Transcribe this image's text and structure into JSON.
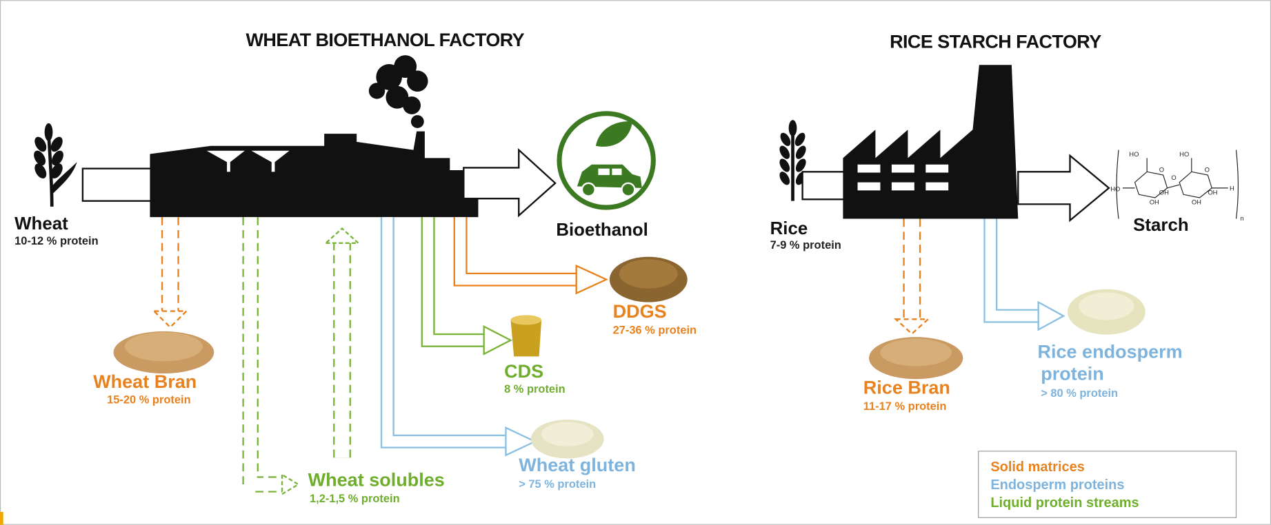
{
  "factories": [
    {
      "title": "WHEAT BIOETHANOL FACTORY",
      "input": {
        "name": "Wheat",
        "protein": "10-12 % protein"
      },
      "output": "Bioethanol"
    },
    {
      "title": "RICE STARCH FACTORY",
      "input": {
        "name": "Rice",
        "protein": "7-9 % protein"
      },
      "output": "Starch"
    }
  ],
  "products": [
    {
      "name": "Wheat Bran",
      "protein": "15-20 % protein"
    },
    {
      "name": "Wheat solubles",
      "protein": "1,2-1,5 % protein"
    },
    {
      "name": "Wheat gluten",
      "protein": "> 75 % protein"
    },
    {
      "name": "CDS",
      "protein": "8 % protein"
    },
    {
      "name": "DDGS",
      "protein": "27-36 % protein"
    },
    {
      "name": "Rice Bran",
      "protein": "11-17 % protein"
    },
    {
      "name": [
        "Rice endosperm",
        "protein"
      ],
      "protein": "> 80 % protein"
    }
  ],
  "starch_structure": {
    "labels": [
      "HO",
      "OH",
      "HO",
      "OH",
      "O",
      "O",
      "OH",
      "OH",
      "O",
      "H",
      "n"
    ]
  },
  "legend": [
    "Solid matrices",
    "Endosperm proteins",
    "Liquid protein streams"
  ]
}
